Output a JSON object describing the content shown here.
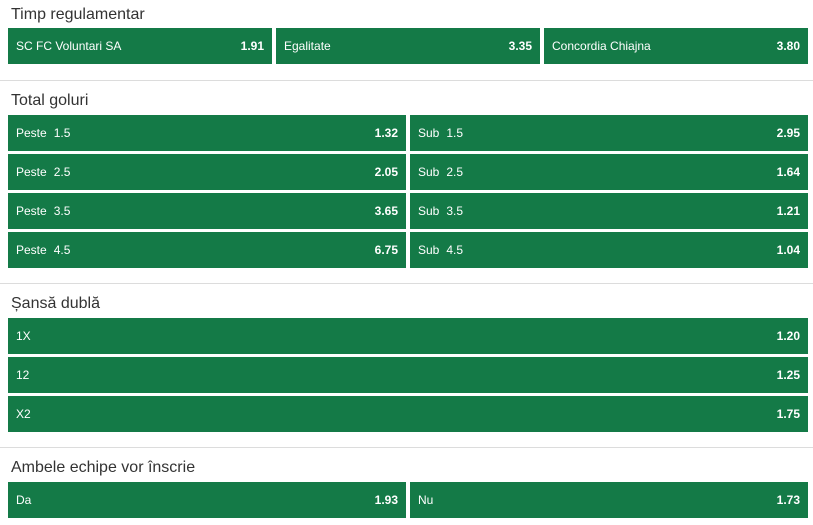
{
  "markets": {
    "regular_time": {
      "title": "Timp regulamentar",
      "options": [
        {
          "label": "SC FC Voluntari SA",
          "odd": "1.91"
        },
        {
          "label": "Egalitate",
          "odd": "3.35"
        },
        {
          "label": "Concordia Chiajna",
          "odd": "3.80"
        }
      ]
    },
    "total_goals": {
      "title": "Total goluri",
      "rows": [
        {
          "over_label": "Peste",
          "over_line": "1.5",
          "over_odd": "1.32",
          "under_label": "Sub",
          "under_line": "1.5",
          "under_odd": "2.95"
        },
        {
          "over_label": "Peste",
          "over_line": "2.5",
          "over_odd": "2.05",
          "under_label": "Sub",
          "under_line": "2.5",
          "under_odd": "1.64"
        },
        {
          "over_label": "Peste",
          "over_line": "3.5",
          "over_odd": "3.65",
          "under_label": "Sub",
          "under_line": "3.5",
          "under_odd": "1.21"
        },
        {
          "over_label": "Peste",
          "over_line": "4.5",
          "over_odd": "6.75",
          "under_label": "Sub",
          "under_line": "4.5",
          "under_odd": "1.04"
        }
      ]
    },
    "double_chance": {
      "title": "Șansă dublă",
      "options": [
        {
          "label": "1X",
          "odd": "1.20"
        },
        {
          "label": "12",
          "odd": "1.25"
        },
        {
          "label": "X2",
          "odd": "1.75"
        }
      ]
    },
    "both_teams_score": {
      "title": "Ambele echipe vor înscrie",
      "options": [
        {
          "label": "Da",
          "odd": "1.93"
        },
        {
          "label": "Nu",
          "odd": "1.73"
        }
      ]
    }
  },
  "colors": {
    "odd_background": "#147a47",
    "odd_text": "#ffffff",
    "title_text": "#333333",
    "divider": "#dcdcdc"
  }
}
